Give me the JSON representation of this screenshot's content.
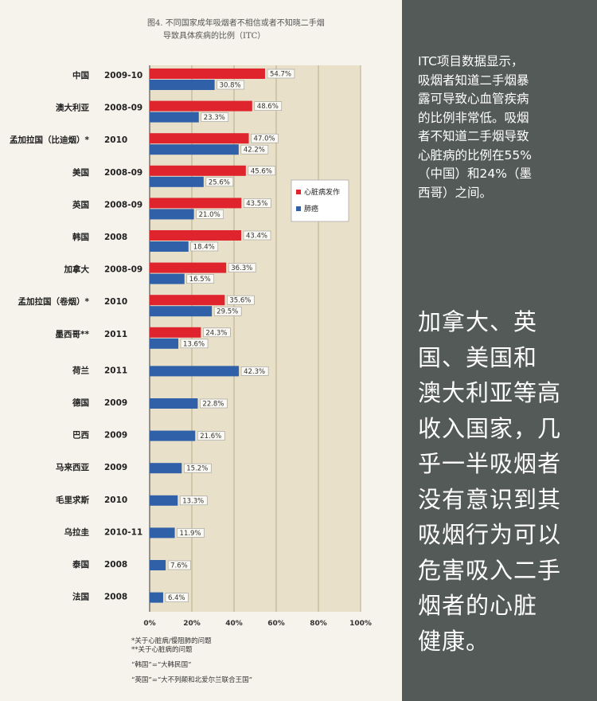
{
  "caption": {
    "line1": "图4. 不同国家成年吸烟者不相信或者不知晓二手烟",
    "line2": "导致具体疾病的比例（ITC）"
  },
  "right_panel": {
    "intro": "ITC项目数据显示，\n吸烟者知道二手烟暴\n露可导致心血管疾病\n的比例非常低。吸烟\n者不知道二手烟导致\n心脏病的比例在55%\n（中国）和24%（墨\n西哥）之间。",
    "big_text": "加拿大、英\n国、美国和\n澳大利亚等高\n收入国家，几\n乎一半吸烟者\n没有意识到其\n吸烟行为可以\n危害吸入二手\n烟者的心脏\n健康。"
  },
  "footnotes": {
    "note1": "*关于心脏病/慢阻肺的问题",
    "note2": "**关于心脏病的问题",
    "note3": "“韩国”=“大韩民国”",
    "note4": "“英国”=“大不列颠和北爱尔兰联合王国”"
  },
  "colors": {
    "heart": "#e0242e",
    "lung": "#3060a8",
    "plot_bg": "#e8e0c8"
  },
  "chart_data": {
    "type": "bar",
    "orientation": "horizontal",
    "categories": [
      {
        "country": "中国",
        "year": "2009-10"
      },
      {
        "country": "澳大利亚",
        "year": "2008-09"
      },
      {
        "country": "孟加拉国（比迪烟）*",
        "year": "2010"
      },
      {
        "country": "美国",
        "year": "2008-09"
      },
      {
        "country": "英国",
        "year": "2008-09"
      },
      {
        "country": "韩国",
        "year": "2008"
      },
      {
        "country": "加拿大",
        "year": "2008-09"
      },
      {
        "country": "孟加拉国（卷烟）*",
        "year": "2010"
      },
      {
        "country": "墨西哥**",
        "year": "2011"
      },
      {
        "country": "荷兰",
        "year": "2011"
      },
      {
        "country": "德国",
        "year": "2009"
      },
      {
        "country": "巴西",
        "year": "2009"
      },
      {
        "country": "马来西亚",
        "year": "2009"
      },
      {
        "country": "毛里求斯",
        "year": "2010"
      },
      {
        "country": "乌拉圭",
        "year": "2010-11"
      },
      {
        "country": "泰国",
        "year": "2008"
      },
      {
        "country": "法国",
        "year": "2008"
      }
    ],
    "series": [
      {
        "name": "心脏病发作",
        "values": [
          54.7,
          48.6,
          47.0,
          45.6,
          43.5,
          43.4,
          36.3,
          35.6,
          24.3,
          null,
          null,
          null,
          null,
          null,
          null,
          null,
          null
        ]
      },
      {
        "name": "肺癌",
        "values": [
          30.8,
          23.3,
          42.2,
          25.6,
          21.0,
          18.4,
          16.5,
          29.5,
          13.6,
          42.3,
          22.8,
          21.6,
          15.2,
          13.3,
          11.9,
          7.6,
          6.4
        ]
      }
    ],
    "xlim": [
      0,
      100
    ],
    "xticks": [
      "0%",
      "20%",
      "40%",
      "60%",
      "80%",
      "100%"
    ],
    "grid": true,
    "legend_position": "right"
  }
}
